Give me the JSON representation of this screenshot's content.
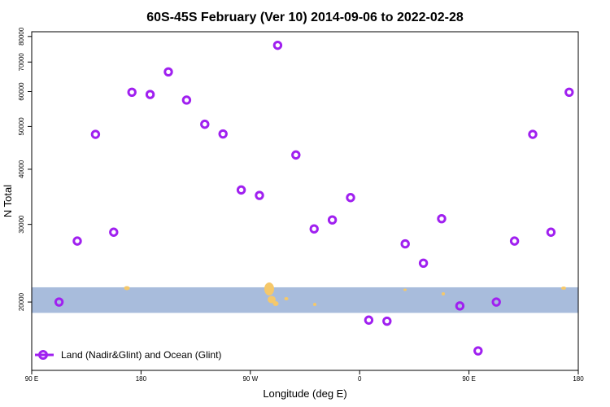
{
  "chart_data": {
    "type": "scatter",
    "title": "60S-45S February (Ver 10)   2014-09-06 to 2022-02-28",
    "xlabel": "Longitude (deg E)",
    "ylabel": "N Total",
    "x_ticks": [
      {
        "value": 90,
        "label": "90 E"
      },
      {
        "value": 180,
        "label": "180"
      },
      {
        "value": 270,
        "label": "90 W"
      },
      {
        "value": 360,
        "label": "0"
      },
      {
        "value": 450,
        "label": "90 E"
      },
      {
        "value": 540,
        "label": "180"
      }
    ],
    "xlim": [
      90,
      540
    ],
    "y_scale": "log",
    "ylim": [
      14000,
      82000
    ],
    "y_ticks": [
      20000,
      30000,
      40000,
      50000,
      60000,
      70000,
      80000
    ],
    "grid": false,
    "legend_position": "bottom-left",
    "series": [
      {
        "name": "Land (Nadir&Glint) and Ocean (Glint)",
        "color": "#a020f0",
        "points": [
          {
            "x": 112.5,
            "y": 20000
          },
          {
            "x": 127.5,
            "y": 27500
          },
          {
            "x": 142.5,
            "y": 48000
          },
          {
            "x": 157.5,
            "y": 28800
          },
          {
            "x": 172.5,
            "y": 59800
          },
          {
            "x": 187.5,
            "y": 59100
          },
          {
            "x": 202.5,
            "y": 66500
          },
          {
            "x": 217.5,
            "y": 57400
          },
          {
            "x": 232.5,
            "y": 50600
          },
          {
            "x": 247.5,
            "y": 48100
          },
          {
            "x": 262.5,
            "y": 35900
          },
          {
            "x": 277.5,
            "y": 34900
          },
          {
            "x": 292.5,
            "y": 76400
          },
          {
            "x": 307.5,
            "y": 43100
          },
          {
            "x": 322.5,
            "y": 29300
          },
          {
            "x": 337.5,
            "y": 30700
          },
          {
            "x": 352.5,
            "y": 34500
          },
          {
            "x": 367.5,
            "y": 18200
          },
          {
            "x": 382.5,
            "y": 18100
          },
          {
            "x": 397.5,
            "y": 27100
          },
          {
            "x": 412.5,
            "y": 24500
          },
          {
            "x": 427.5,
            "y": 30900
          },
          {
            "x": 442.5,
            "y": 19600
          },
          {
            "x": 457.5,
            "y": 15500
          },
          {
            "x": 472.5,
            "y": 20000
          },
          {
            "x": 487.5,
            "y": 27500
          },
          {
            "x": 502.5,
            "y": 48000
          },
          {
            "x": 517.5,
            "y": 28800
          },
          {
            "x": 532.5,
            "y": 59800
          }
        ]
      }
    ],
    "band": {
      "y_range": [
        18900,
        21600
      ],
      "color": "#a8bcdc",
      "land_color": "#f5c86a"
    }
  }
}
